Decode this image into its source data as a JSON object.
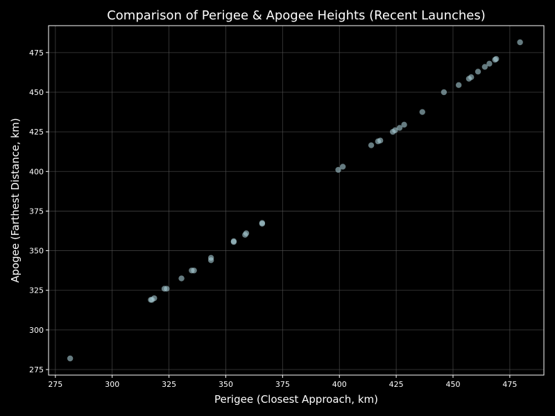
{
  "chart_data": {
    "type": "scatter",
    "title": "Comparison of Perigee & Apogee Heights (Recent Launches)",
    "xlabel": "Perigee (Closest Approach, km)",
    "ylabel": "Apogee (Farthest Distance, km)",
    "xlim": [
      272,
      490
    ],
    "ylim": [
      271.5,
      492
    ],
    "xticks": [
      275,
      300,
      325,
      350,
      375,
      400,
      425,
      450,
      475
    ],
    "yticks": [
      275,
      300,
      325,
      350,
      375,
      400,
      425,
      450,
      475
    ],
    "grid": true,
    "colors": {
      "background": "#000000",
      "point": "#a9cdd6",
      "grid": "#5a5a5a",
      "text": "#ffffff"
    },
    "points": [
      {
        "x": 281.5,
        "y": 282.0
      },
      {
        "x": 317.0,
        "y": 319.0
      },
      {
        "x": 317.5,
        "y": 319.0
      },
      {
        "x": 318.5,
        "y": 320.0
      },
      {
        "x": 323.0,
        "y": 326.0
      },
      {
        "x": 324.0,
        "y": 326.0
      },
      {
        "x": 330.5,
        "y": 332.5
      },
      {
        "x": 335.0,
        "y": 337.5
      },
      {
        "x": 336.0,
        "y": 337.5
      },
      {
        "x": 343.5,
        "y": 344.0
      },
      {
        "x": 343.5,
        "y": 345.5
      },
      {
        "x": 353.5,
        "y": 355.5
      },
      {
        "x": 353.5,
        "y": 356.0
      },
      {
        "x": 358.5,
        "y": 360.0
      },
      {
        "x": 359.0,
        "y": 361.0
      },
      {
        "x": 366.0,
        "y": 367.0
      },
      {
        "x": 366.0,
        "y": 367.5
      },
      {
        "x": 399.5,
        "y": 401.0
      },
      {
        "x": 401.5,
        "y": 403.0
      },
      {
        "x": 414.0,
        "y": 416.5
      },
      {
        "x": 417.0,
        "y": 419.0
      },
      {
        "x": 418.0,
        "y": 419.5
      },
      {
        "x": 423.5,
        "y": 425.0
      },
      {
        "x": 424.5,
        "y": 426.0
      },
      {
        "x": 426.5,
        "y": 427.5
      },
      {
        "x": 428.5,
        "y": 429.5
      },
      {
        "x": 436.5,
        "y": 437.5
      },
      {
        "x": 446.0,
        "y": 450.0
      },
      {
        "x": 452.5,
        "y": 454.5
      },
      {
        "x": 457.0,
        "y": 458.5
      },
      {
        "x": 458.0,
        "y": 459.5
      },
      {
        "x": 461.0,
        "y": 463.0
      },
      {
        "x": 464.0,
        "y": 466.0
      },
      {
        "x": 466.0,
        "y": 468.0
      },
      {
        "x": 468.5,
        "y": 470.5
      },
      {
        "x": 469.0,
        "y": 471.0
      },
      {
        "x": 479.5,
        "y": 481.5
      }
    ]
  }
}
